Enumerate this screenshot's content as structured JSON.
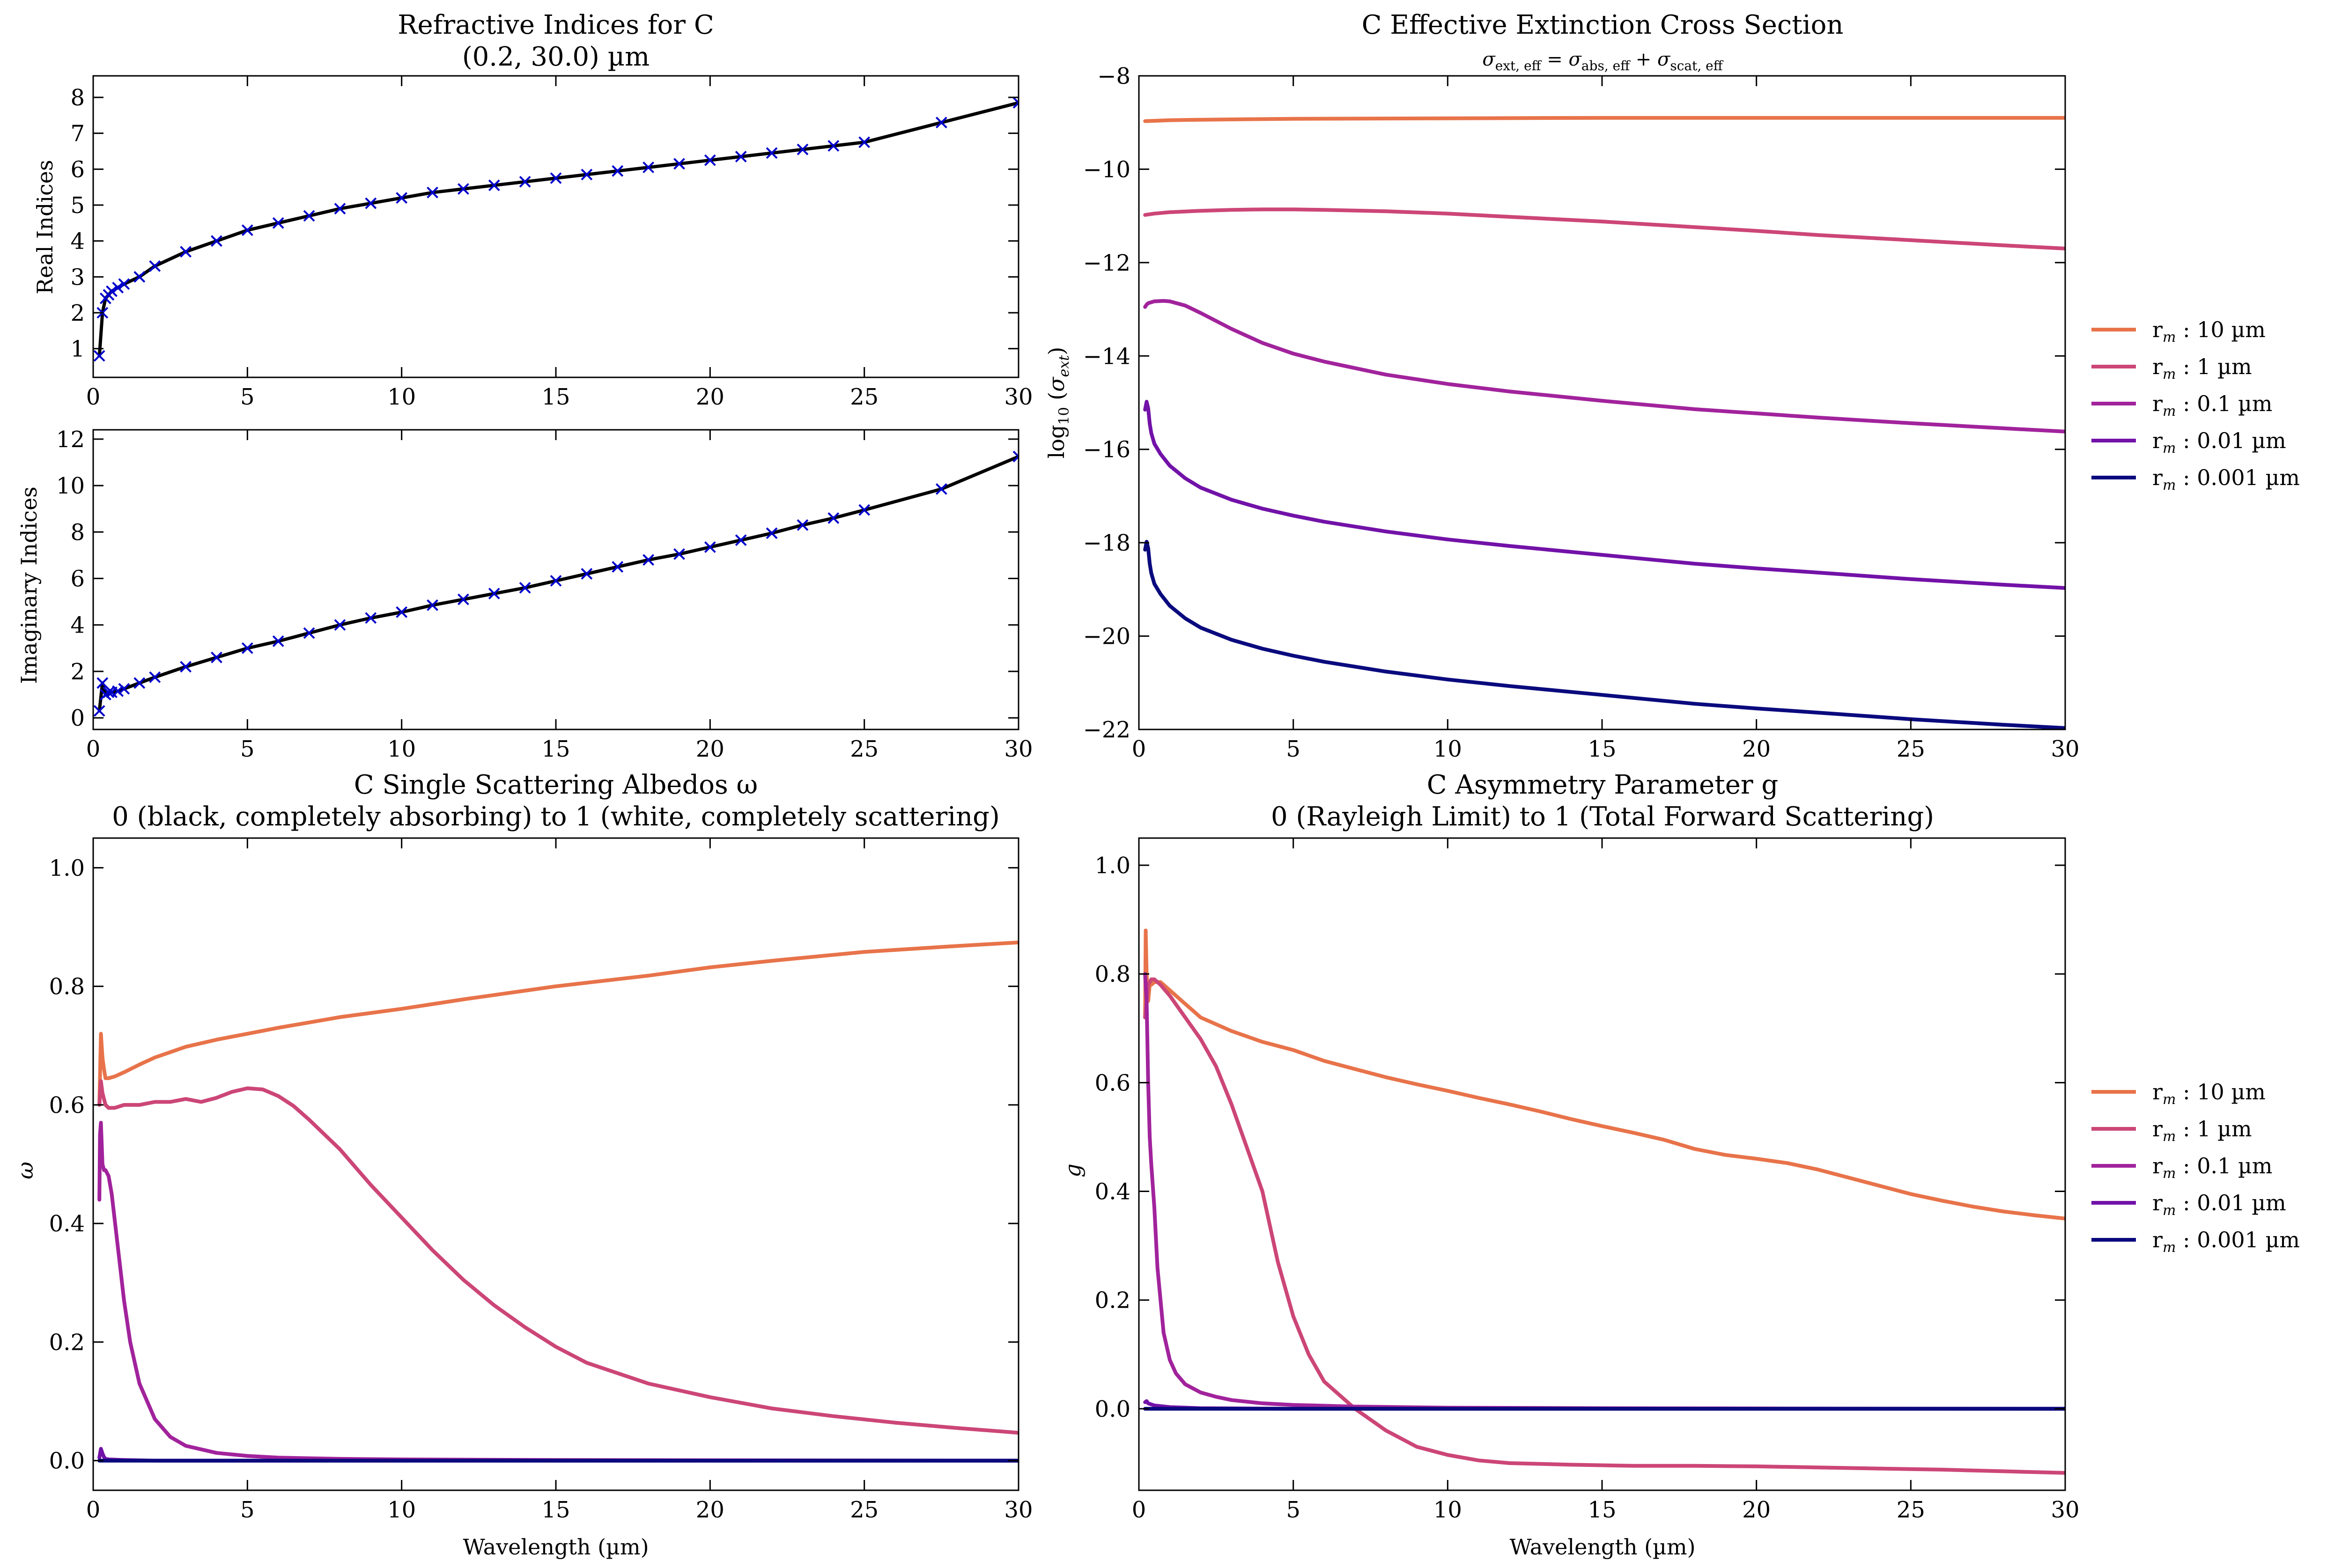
{
  "colors": {
    "rm_10": "#e8734a",
    "rm_1": "#cc4677",
    "rm_0_1": "#a1239c",
    "rm_0_01": "#7212a8",
    "rm_0_001": "#0a0a7e",
    "fit_line": "#000000",
    "data_marker": "#0000cc"
  },
  "panels": {
    "refr": {
      "title_l1": "Refractive Indices for C",
      "title_l2": "(0.2, 30.0) µm"
    },
    "real": {
      "ylabel": "Real Indices"
    },
    "imag": {
      "ylabel": "Imaginary Indices"
    },
    "ext": {
      "title_l1": "C Effective Extinction Cross Section",
      "title_l2": "σ_ext, eff = σ_abs, eff + σ_scat, eff",
      "ylabel": "log₁₀ (σ_ext)"
    },
    "alb": {
      "title_l1": "C Single Scattering Albedos ω",
      "title_l2": "0 (black, completely absorbing) to 1 (white, completely scattering)",
      "ylabel": "ω",
      "xlabel": "Wavelength (µm)"
    },
    "asym": {
      "title_l1": "C Asymmetry Parameter g",
      "title_l2": "0 (Rayleigh Limit) to 1 (Total Forward Scattering)",
      "ylabel": "g",
      "xlabel": "Wavelength (µm)"
    }
  },
  "legend": {
    "entries": [
      "r_m : 10 µm",
      "r_m : 1 µm",
      "r_m : 0.1 µm",
      "r_m : 0.01 µm",
      "r_m : 0.001 µm"
    ],
    "placement": "right, outside axes"
  },
  "chart_data": [
    {
      "id": "real",
      "type": "line",
      "title": "Refractive Indices for C (0.2, 30.0) µm",
      "xlabel": "",
      "ylabel": "Real Indices",
      "xlim": [
        0,
        30
      ],
      "ylim": [
        0.2,
        8.6
      ],
      "xticks": [
        0,
        5,
        10,
        15,
        20,
        25,
        30
      ],
      "yticks": [
        1,
        2,
        3,
        4,
        5,
        6,
        7,
        8
      ],
      "grid": false,
      "series": [
        {
          "color_key": "fit_line",
          "markers": "x",
          "x": [
            0.2,
            0.3,
            0.4,
            0.5,
            0.6,
            0.8,
            1,
            1.5,
            2,
            3,
            4,
            5,
            6,
            7,
            8,
            9,
            10,
            11,
            12,
            13,
            14,
            15,
            16,
            17,
            18,
            19,
            20,
            21,
            22,
            23,
            24,
            25,
            27.5,
            30
          ],
          "y": [
            0.8,
            2.0,
            2.4,
            2.5,
            2.6,
            2.7,
            2.8,
            3.0,
            3.3,
            3.7,
            4.0,
            4.3,
            4.5,
            4.7,
            4.9,
            5.05,
            5.2,
            5.35,
            5.45,
            5.55,
            5.65,
            5.75,
            5.85,
            5.95,
            6.05,
            6.15,
            6.25,
            6.35,
            6.45,
            6.55,
            6.65,
            6.75,
            7.3,
            7.85
          ]
        }
      ]
    },
    {
      "id": "imag",
      "type": "line",
      "xlabel": "",
      "ylabel": "Imaginary Indices",
      "xlim": [
        0,
        30
      ],
      "ylim": [
        -0.5,
        12.4
      ],
      "xticks": [
        0,
        5,
        10,
        15,
        20,
        25,
        30
      ],
      "yticks": [
        0,
        2,
        4,
        6,
        8,
        10,
        12
      ],
      "grid": false,
      "series": [
        {
          "color_key": "fit_line",
          "markers": "x",
          "x": [
            0.2,
            0.3,
            0.4,
            0.5,
            0.6,
            0.8,
            1,
            1.5,
            2,
            3,
            4,
            5,
            6,
            7,
            8,
            9,
            10,
            11,
            12,
            13,
            14,
            15,
            16,
            17,
            18,
            19,
            20,
            21,
            22,
            23,
            24,
            25,
            27.5,
            30
          ],
          "y": [
            0.3,
            1.5,
            1.0,
            1.1,
            1.1,
            1.15,
            1.25,
            1.5,
            1.75,
            2.2,
            2.6,
            3.0,
            3.3,
            3.65,
            4.0,
            4.3,
            4.55,
            4.85,
            5.1,
            5.35,
            5.6,
            5.9,
            6.2,
            6.5,
            6.8,
            7.05,
            7.35,
            7.65,
            7.95,
            8.3,
            8.6,
            8.95,
            9.85,
            11.25
          ]
        }
      ]
    },
    {
      "id": "ext",
      "type": "line",
      "title": "C Effective Extinction Cross Section",
      "xlabel": "",
      "ylabel": "log10 (σ_ext)",
      "xlim": [
        0,
        30
      ],
      "ylim": [
        -22,
        -8
      ],
      "xticks": [
        0,
        5,
        10,
        15,
        20,
        25,
        30
      ],
      "yticks": [
        -22,
        -20,
        -18,
        -16,
        -14,
        -12,
        -10,
        -8
      ],
      "grid": false,
      "series": [
        {
          "name": "r_m : 10 µm",
          "color_key": "rm_10",
          "x": [
            0.2,
            1,
            2,
            5,
            10,
            15,
            20,
            25,
            30
          ],
          "y": [
            -8.97,
            -8.95,
            -8.94,
            -8.92,
            -8.91,
            -8.9,
            -8.9,
            -8.9,
            -8.9
          ]
        },
        {
          "name": "r_m : 1 µm",
          "color_key": "rm_1",
          "x": [
            0.2,
            0.5,
            1,
            2,
            3,
            4,
            5,
            6,
            8,
            10,
            12,
            15,
            18,
            20,
            22,
            25,
            28,
            30
          ],
          "y": [
            -10.98,
            -10.95,
            -10.92,
            -10.89,
            -10.87,
            -10.86,
            -10.86,
            -10.87,
            -10.9,
            -10.95,
            -11.02,
            -11.12,
            -11.24,
            -11.32,
            -11.41,
            -11.52,
            -11.63,
            -11.7
          ]
        },
        {
          "name": "r_m : 0.1 µm",
          "color_key": "rm_0_1",
          "x": [
            0.2,
            0.25,
            0.3,
            0.5,
            0.8,
            1,
            1.5,
            2,
            3,
            4,
            5,
            6,
            8,
            10,
            12,
            15,
            18,
            20,
            22,
            25,
            28,
            30
          ],
          "y": [
            -12.95,
            -12.9,
            -12.87,
            -12.83,
            -12.82,
            -12.83,
            -12.92,
            -13.08,
            -13.42,
            -13.72,
            -13.95,
            -14.12,
            -14.4,
            -14.6,
            -14.76,
            -14.96,
            -15.14,
            -15.23,
            -15.32,
            -15.44,
            -15.55,
            -15.62
          ]
        },
        {
          "name": "r_m : 0.01 µm",
          "color_key": "rm_0_01",
          "x": [
            0.2,
            0.25,
            0.3,
            0.35,
            0.4,
            0.5,
            0.7,
            1,
            1.5,
            2,
            3,
            4,
            5,
            6,
            8,
            10,
            12,
            15,
            18,
            20,
            22,
            25,
            28,
            30
          ],
          "y": [
            -15.15,
            -14.98,
            -15.12,
            -15.45,
            -15.65,
            -15.88,
            -16.1,
            -16.35,
            -16.62,
            -16.82,
            -17.08,
            -17.27,
            -17.42,
            -17.55,
            -17.76,
            -17.93,
            -18.07,
            -18.26,
            -18.45,
            -18.55,
            -18.64,
            -18.78,
            -18.9,
            -18.97
          ]
        },
        {
          "name": "r_m : 0.001 µm",
          "color_key": "rm_0_001",
          "x": [
            0.2,
            0.25,
            0.3,
            0.35,
            0.4,
            0.5,
            0.7,
            1,
            1.5,
            2,
            3,
            4,
            5,
            6,
            8,
            10,
            12,
            15,
            18,
            20,
            22,
            25,
            28,
            30
          ],
          "y": [
            -18.15,
            -17.98,
            -18.12,
            -18.45,
            -18.65,
            -18.88,
            -19.1,
            -19.35,
            -19.62,
            -19.82,
            -20.08,
            -20.27,
            -20.42,
            -20.55,
            -20.76,
            -20.93,
            -21.07,
            -21.26,
            -21.45,
            -21.55,
            -21.64,
            -21.78,
            -21.9,
            -21.97
          ]
        }
      ],
      "legend": "right, outside axes"
    },
    {
      "id": "alb",
      "type": "line",
      "title": "C Single Scattering Albedos ω",
      "xlabel": "Wavelength (µm)",
      "ylabel": "ω",
      "xlim": [
        0,
        30
      ],
      "ylim": [
        -0.05,
        1.05
      ],
      "xticks": [
        0,
        5,
        10,
        15,
        20,
        25,
        30
      ],
      "yticks": [
        0.0,
        0.2,
        0.4,
        0.6,
        0.8,
        1.0
      ],
      "grid": false,
      "series": [
        {
          "name": "r_m : 10 µm",
          "color_key": "rm_10",
          "x": [
            0.2,
            0.25,
            0.3,
            0.35,
            0.4,
            0.5,
            0.7,
            1,
            1.5,
            2,
            3,
            4,
            5,
            6,
            8,
            10,
            12,
            15,
            18,
            20,
            22,
            25,
            28,
            30
          ],
          "y": [
            0.6,
            0.72,
            0.68,
            0.66,
            0.645,
            0.645,
            0.648,
            0.655,
            0.668,
            0.68,
            0.698,
            0.71,
            0.72,
            0.73,
            0.748,
            0.762,
            0.778,
            0.8,
            0.818,
            0.832,
            0.843,
            0.858,
            0.868,
            0.874
          ]
        },
        {
          "name": "r_m : 1 µm",
          "color_key": "rm_1",
          "x": [
            0.2,
            0.25,
            0.3,
            0.4,
            0.5,
            0.7,
            1,
            1.5,
            2,
            2.5,
            3,
            3.5,
            4,
            4.5,
            5,
            5.5,
            6,
            6.5,
            7,
            8,
            9,
            10,
            11,
            12,
            13,
            14,
            15,
            16,
            18,
            20,
            22,
            24,
            26,
            28,
            30
          ],
          "y": [
            0.6,
            0.64,
            0.62,
            0.6,
            0.595,
            0.595,
            0.6,
            0.6,
            0.605,
            0.605,
            0.61,
            0.605,
            0.612,
            0.622,
            0.628,
            0.626,
            0.615,
            0.598,
            0.575,
            0.525,
            0.465,
            0.41,
            0.355,
            0.305,
            0.262,
            0.225,
            0.192,
            0.165,
            0.13,
            0.107,
            0.088,
            0.075,
            0.064,
            0.055,
            0.047
          ]
        },
        {
          "name": "r_m : 0.1 µm",
          "color_key": "rm_0_1",
          "x": [
            0.2,
            0.22,
            0.25,
            0.3,
            0.35,
            0.4,
            0.5,
            0.6,
            0.8,
            1,
            1.2,
            1.5,
            2,
            2.5,
            3,
            4,
            5,
            6,
            8,
            10,
            15,
            20,
            30
          ],
          "y": [
            0.44,
            0.55,
            0.57,
            0.5,
            0.49,
            0.49,
            0.48,
            0.45,
            0.36,
            0.27,
            0.2,
            0.13,
            0.07,
            0.04,
            0.025,
            0.013,
            0.008,
            0.005,
            0.003,
            0.002,
            0.001,
            0.0005,
            0.0
          ]
        },
        {
          "name": "r_m : 0.01 µm",
          "color_key": "rm_0_01",
          "x": [
            0.2,
            0.25,
            0.3,
            0.35,
            0.4,
            0.5,
            1,
            2,
            5,
            10,
            20,
            30
          ],
          "y": [
            0.005,
            0.02,
            0.012,
            0.006,
            0.003,
            0.002,
            0.001,
            0.0,
            0.0,
            0.0,
            0.0,
            0.0
          ]
        },
        {
          "name": "r_m : 0.001 µm",
          "color_key": "rm_0_001",
          "x": [
            0.2,
            1,
            5,
            10,
            20,
            30
          ],
          "y": [
            0.0,
            0.0,
            0.0,
            0.0,
            0.0,
            0.0
          ]
        }
      ]
    },
    {
      "id": "asym",
      "type": "line",
      "title": "C Asymmetry Parameter g",
      "xlabel": "Wavelength (µm)",
      "ylabel": "g",
      "xlim": [
        0,
        30
      ],
      "ylim": [
        -0.15,
        1.05
      ],
      "xticks": [
        0,
        5,
        10,
        15,
        20,
        25,
        30
      ],
      "yticks": [
        0.0,
        0.2,
        0.4,
        0.6,
        0.8,
        1.0
      ],
      "grid": false,
      "series": [
        {
          "name": "r_m : 10 µm",
          "color_key": "rm_10",
          "x": [
            0.2,
            0.22,
            0.25,
            0.3,
            0.35,
            0.4,
            0.5,
            0.7,
            1,
            1.5,
            2,
            3,
            4,
            5,
            6,
            7,
            8,
            9,
            10,
            11,
            12,
            13,
            14,
            15,
            16,
            17,
            18,
            19,
            20,
            21,
            22,
            23,
            24,
            25,
            26,
            27,
            28,
            29,
            30
          ],
          "y": [
            0.72,
            0.88,
            0.8,
            0.75,
            0.78,
            0.78,
            0.785,
            0.785,
            0.77,
            0.745,
            0.72,
            0.695,
            0.675,
            0.66,
            0.64,
            0.625,
            0.61,
            0.597,
            0.585,
            0.572,
            0.56,
            0.547,
            0.533,
            0.52,
            0.508,
            0.495,
            0.478,
            0.467,
            0.46,
            0.452,
            0.44,
            0.425,
            0.41,
            0.395,
            0.383,
            0.372,
            0.363,
            0.356,
            0.35
          ]
        },
        {
          "name": "r_m : 1 µm",
          "color_key": "rm_1",
          "x": [
            0.2,
            0.25,
            0.3,
            0.4,
            0.5,
            0.7,
            1,
            1.5,
            2,
            2.5,
            3,
            3.5,
            4,
            4.5,
            5,
            5.5,
            6,
            7,
            8,
            9,
            10,
            11,
            12,
            14,
            16,
            18,
            20,
            22,
            24,
            26,
            28,
            30
          ],
          "y": [
            0.72,
            0.75,
            0.78,
            0.79,
            0.79,
            0.78,
            0.76,
            0.72,
            0.68,
            0.63,
            0.56,
            0.48,
            0.4,
            0.27,
            0.17,
            0.1,
            0.05,
            0.0,
            -0.04,
            -0.07,
            -0.085,
            -0.095,
            -0.1,
            -0.103,
            -0.105,
            -0.105,
            -0.106,
            -0.108,
            -0.11,
            -0.112,
            -0.115,
            -0.118
          ]
        },
        {
          "name": "r_m : 0.1 µm",
          "color_key": "rm_0_1",
          "x": [
            0.2,
            0.25,
            0.3,
            0.35,
            0.4,
            0.5,
            0.6,
            0.8,
            1,
            1.2,
            1.5,
            2,
            2.5,
            3,
            4,
            5,
            7,
            10,
            15,
            20,
            30
          ],
          "y": [
            0.8,
            0.75,
            0.6,
            0.5,
            0.45,
            0.37,
            0.26,
            0.14,
            0.09,
            0.065,
            0.045,
            0.03,
            0.022,
            0.016,
            0.01,
            0.007,
            0.004,
            0.002,
            0.001,
            0.0005,
            0.0
          ]
        },
        {
          "name": "r_m : 0.01 µm",
          "color_key": "rm_0_01",
          "x": [
            0.2,
            0.25,
            0.3,
            0.5,
            1,
            2,
            5,
            10,
            20,
            30
          ],
          "y": [
            0.012,
            0.014,
            0.01,
            0.006,
            0.003,
            0.001,
            0.0,
            0.0,
            0.0,
            0.0
          ]
        },
        {
          "name": "r_m : 0.001 µm",
          "color_key": "rm_0_001",
          "x": [
            0.2,
            1,
            5,
            10,
            20,
            30
          ],
          "y": [
            0.0,
            0.0,
            0.0,
            0.0,
            0.0,
            0.0
          ]
        }
      ],
      "legend": "right, outside axes"
    }
  ]
}
